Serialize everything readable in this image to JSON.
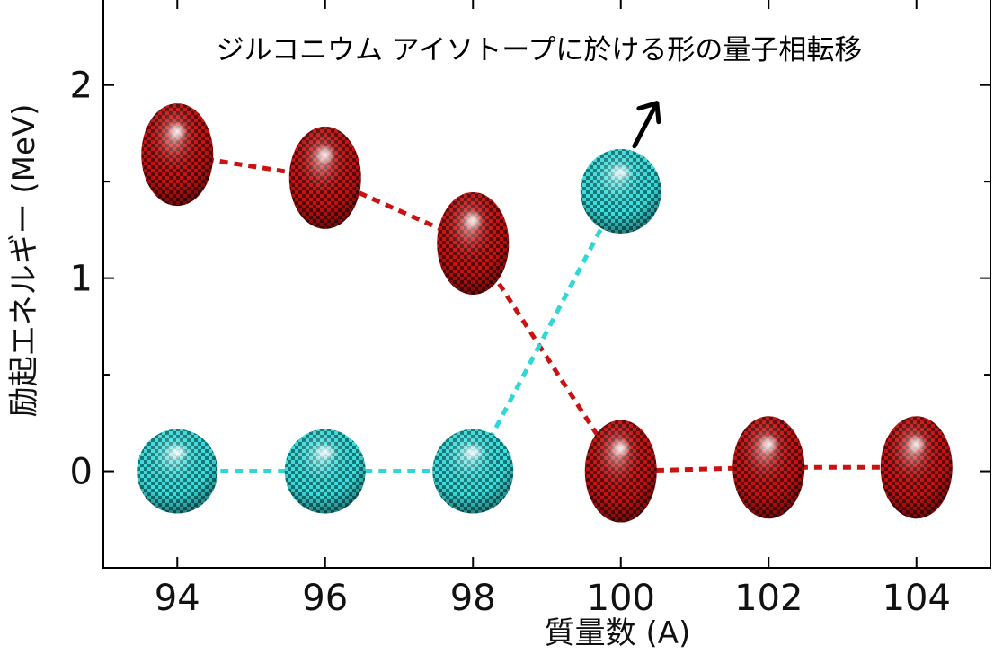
{
  "chart_data": {
    "type": "scatter",
    "title": "ジルコニウム アイソトープに於ける形の量子相転移",
    "xlabel": "質量数 (A)",
    "ylabel": "励起エネルギー (MeV)",
    "xlim": [
      93,
      105
    ],
    "ylim": [
      -0.5,
      2.45
    ],
    "x_ticks": [
      94,
      96,
      98,
      100,
      102,
      104
    ],
    "y_ticks": [
      0,
      1,
      2
    ],
    "y_minor_ticks": [
      -0.5,
      0.5,
      1.5
    ],
    "grid": false,
    "legend": "none",
    "colors": {
      "deformed": "#cc1111",
      "spherical": "#33d6d6",
      "axes": "#000000"
    },
    "series": [
      {
        "shape": "deformed",
        "color": "#cc1111",
        "points": [
          {
            "x": 94,
            "y": 1.64
          },
          {
            "x": 96,
            "y": 1.52
          },
          {
            "x": 98,
            "y": 1.18
          },
          {
            "x": 100,
            "y": 0.0
          },
          {
            "x": 102,
            "y": 0.02
          },
          {
            "x": 104,
            "y": 0.02
          }
        ]
      },
      {
        "shape": "spherical",
        "color": "#33d6d6",
        "points": [
          {
            "x": 94,
            "y": 0.0
          },
          {
            "x": 96,
            "y": 0.0
          },
          {
            "x": 98,
            "y": 0.0
          },
          {
            "x": 100,
            "y": 1.45
          }
        ]
      }
    ],
    "arrow": {
      "direction": "up-right",
      "near_x": 100.5,
      "near_y": 1.8
    }
  }
}
